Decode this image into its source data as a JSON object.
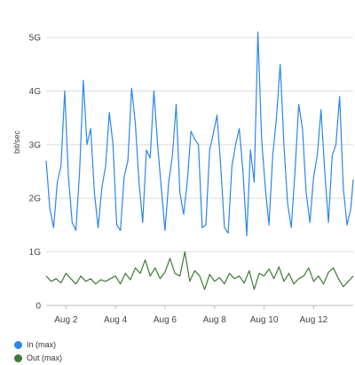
{
  "chart_data": {
    "type": "line",
    "title": "",
    "ylabel": "bit/sec",
    "xlabel": "",
    "ylim": [
      0,
      5.2
    ],
    "x_ticks": [
      "Aug 2",
      "Aug 4",
      "Aug 6",
      "Aug 8",
      "Aug 10",
      "Aug 12"
    ],
    "y_ticks": [
      "0",
      "1G",
      "2G",
      "3G",
      "4G",
      "5G"
    ],
    "y_tick_values": [
      0,
      1,
      2,
      3,
      4,
      5
    ],
    "x_range_days": [
      1.2,
      13.6
    ],
    "x_tick_days": [
      2,
      4,
      6,
      8,
      10,
      12
    ],
    "grid": "horizontal",
    "legend_position": "bottom-left",
    "series": [
      {
        "name": "In (max)",
        "color": "#2b86e8",
        "x": [
          1.2,
          1.35,
          1.5,
          1.65,
          1.8,
          1.95,
          2.1,
          2.25,
          2.4,
          2.55,
          2.7,
          2.85,
          3.0,
          3.15,
          3.3,
          3.45,
          3.6,
          3.75,
          3.9,
          4.05,
          4.2,
          4.35,
          4.5,
          4.65,
          4.8,
          4.95,
          5.1,
          5.25,
          5.4,
          5.55,
          5.7,
          5.85,
          6.0,
          6.15,
          6.3,
          6.45,
          6.6,
          6.75,
          6.9,
          7.05,
          7.2,
          7.35,
          7.5,
          7.65,
          7.8,
          7.95,
          8.1,
          8.25,
          8.4,
          8.55,
          8.7,
          8.85,
          9.0,
          9.15,
          9.3,
          9.45,
          9.6,
          9.75,
          9.9,
          10.05,
          10.2,
          10.35,
          10.5,
          10.65,
          10.8,
          10.95,
          11.1,
          11.25,
          11.4,
          11.55,
          11.7,
          11.85,
          12.0,
          12.15,
          12.3,
          12.45,
          12.6,
          12.75,
          12.9,
          13.05,
          13.2,
          13.35,
          13.5,
          13.6
        ],
        "values": [
          2.7,
          1.8,
          1.45,
          2.3,
          2.6,
          4.0,
          2.4,
          1.55,
          1.4,
          2.5,
          4.2,
          3.0,
          3.3,
          2.1,
          1.45,
          2.2,
          2.6,
          3.6,
          3.0,
          1.5,
          1.4,
          2.4,
          2.7,
          4.05,
          3.4,
          2.3,
          1.55,
          2.9,
          2.75,
          4.0,
          3.0,
          2.2,
          1.4,
          2.3,
          2.8,
          3.75,
          2.1,
          1.7,
          2.3,
          3.25,
          3.1,
          3.0,
          1.45,
          1.5,
          2.9,
          3.2,
          3.55,
          2.6,
          1.45,
          1.35,
          2.6,
          3.0,
          3.3,
          2.5,
          1.3,
          2.9,
          2.3,
          5.1,
          3.1,
          2.2,
          1.5,
          2.8,
          3.5,
          4.5,
          3.0,
          1.9,
          1.45,
          2.5,
          3.75,
          3.3,
          2.1,
          1.55,
          2.4,
          2.8,
          3.65,
          2.5,
          1.55,
          2.8,
          3.0,
          3.9,
          2.2,
          1.5,
          1.8,
          2.35
        ]
      },
      {
        "name": "Out (max)",
        "color": "#3e7a36",
        "x": [
          1.2,
          1.4,
          1.6,
          1.8,
          2.0,
          2.2,
          2.4,
          2.6,
          2.8,
          3.0,
          3.2,
          3.4,
          3.6,
          3.8,
          4.0,
          4.2,
          4.4,
          4.6,
          4.8,
          5.0,
          5.2,
          5.4,
          5.6,
          5.8,
          6.0,
          6.2,
          6.4,
          6.6,
          6.8,
          7.0,
          7.2,
          7.4,
          7.6,
          7.8,
          8.0,
          8.2,
          8.4,
          8.6,
          8.8,
          9.0,
          9.2,
          9.4,
          9.6,
          9.8,
          10.0,
          10.2,
          10.4,
          10.6,
          10.8,
          11.0,
          11.2,
          11.4,
          11.6,
          11.8,
          12.0,
          12.2,
          12.4,
          12.6,
          12.8,
          13.0,
          13.2,
          13.4,
          13.6
        ],
        "values": [
          0.55,
          0.45,
          0.5,
          0.42,
          0.6,
          0.5,
          0.4,
          0.55,
          0.45,
          0.5,
          0.4,
          0.48,
          0.45,
          0.5,
          0.55,
          0.4,
          0.6,
          0.48,
          0.7,
          0.6,
          0.85,
          0.55,
          0.7,
          0.5,
          0.62,
          0.88,
          0.6,
          0.55,
          1.0,
          0.45,
          0.65,
          0.55,
          0.3,
          0.58,
          0.45,
          0.52,
          0.4,
          0.6,
          0.5,
          0.55,
          0.42,
          0.65,
          0.3,
          0.6,
          0.55,
          0.68,
          0.5,
          0.72,
          0.45,
          0.6,
          0.4,
          0.5,
          0.55,
          0.7,
          0.45,
          0.55,
          0.4,
          0.62,
          0.7,
          0.5,
          0.35,
          0.45,
          0.55
        ]
      }
    ]
  }
}
